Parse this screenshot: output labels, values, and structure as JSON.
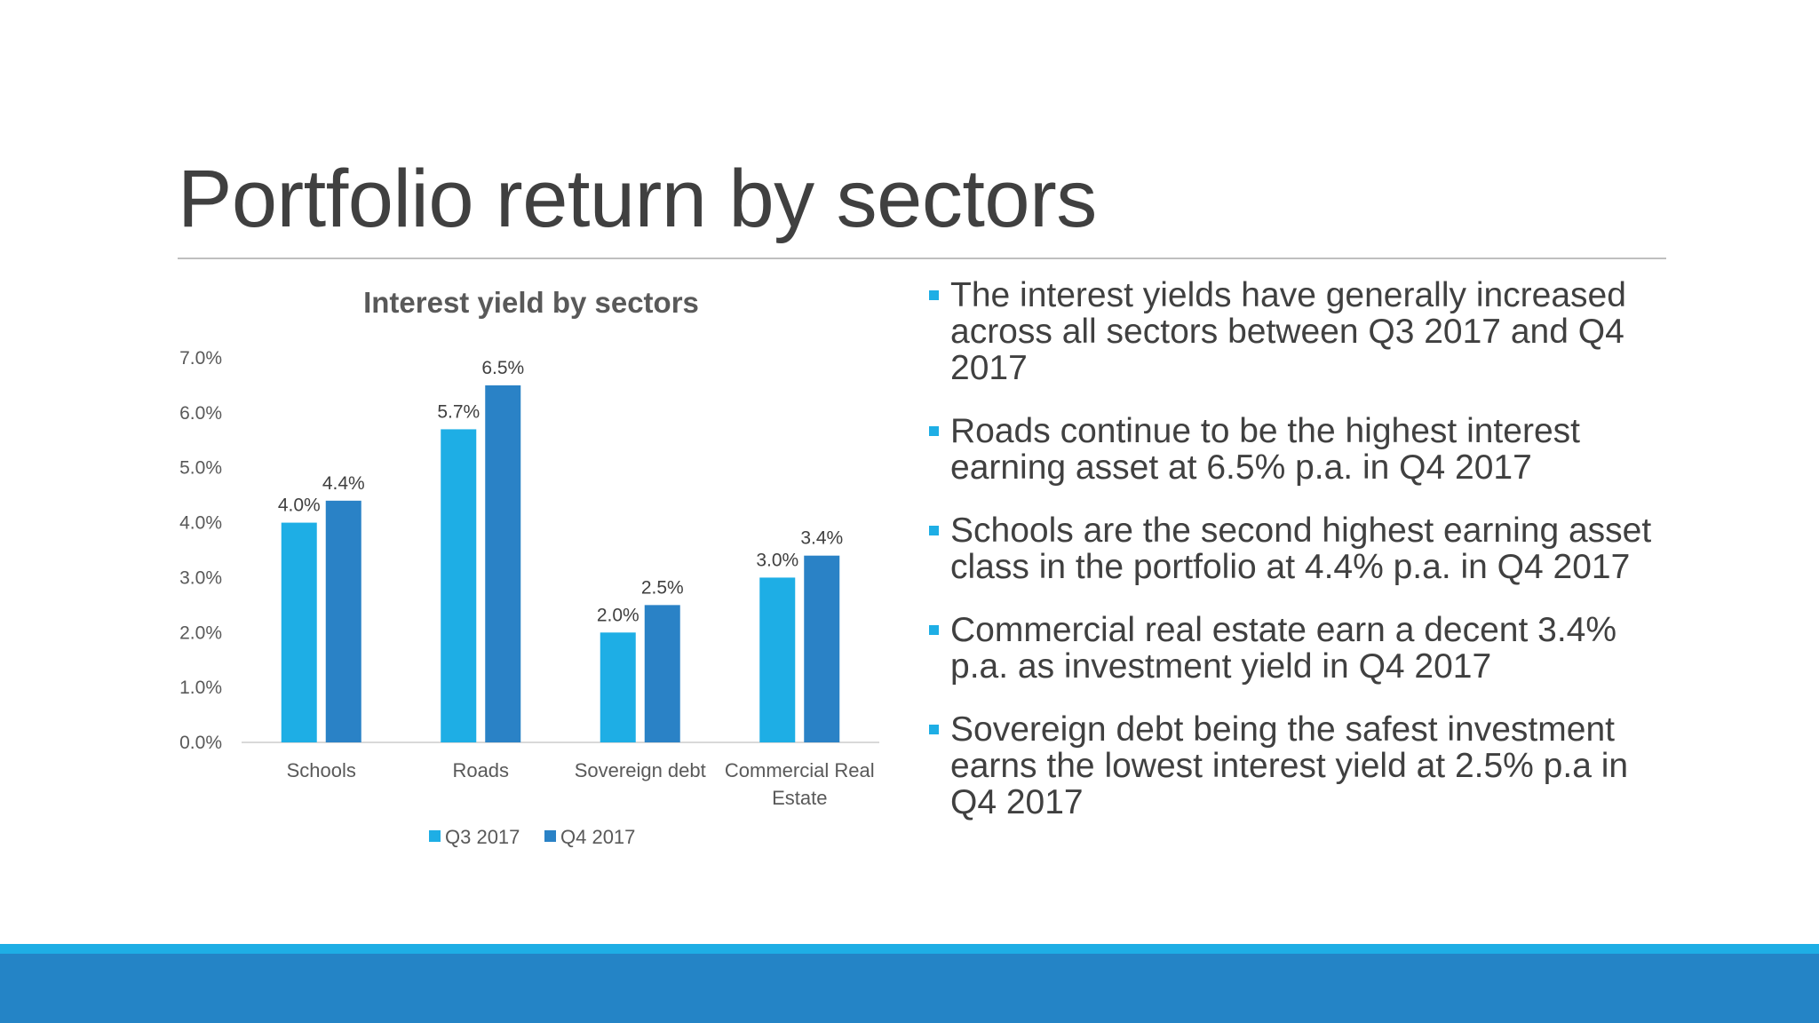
{
  "slide": {
    "title": "Portfolio return by sectors",
    "bullets": [
      "The interest yields have generally increased across all sectors between Q3 2017 and Q4 2017",
      "Roads continue to be the highest interest earning asset at 6.5% p.a. in Q4 2017",
      "Schools are the second highest earning asset class in the portfolio at 4.4% p.a. in Q4 2017",
      "Commercial real estate earn a decent 3.4% p.a. as investment yield in Q4 2017",
      "Sovereign debt being the safest investment earns the lowest interest yield at 2.5% p.a in Q4 2017"
    ],
    "colors": {
      "accent_light": "#1eaee5",
      "accent_dark": "#2484c6",
      "text": "#404040"
    }
  },
  "chart_data": {
    "type": "bar",
    "title": "Interest yield by sectors",
    "categories": [
      "Schools",
      "Roads",
      "Sovereign debt",
      "Commercial Real Estate"
    ],
    "series": [
      {
        "name": "Q3 2017",
        "values": [
          4.0,
          5.7,
          2.0,
          3.0
        ],
        "labels": [
          "4.0%",
          "5.7%",
          "2.0%",
          "3.0%"
        ],
        "color": "#1eaee5"
      },
      {
        "name": "Q4 2017",
        "values": [
          4.4,
          6.5,
          2.5,
          3.4
        ],
        "labels": [
          "4.4%",
          "6.5%",
          "2.5%",
          "3.4%"
        ],
        "color": "#2a82c6"
      }
    ],
    "ylim": [
      0,
      7
    ],
    "yticks": [
      "0.0%",
      "1.0%",
      "2.0%",
      "3.0%",
      "4.0%",
      "5.0%",
      "6.0%",
      "7.0%"
    ],
    "grid": false,
    "legend": "bottom"
  }
}
